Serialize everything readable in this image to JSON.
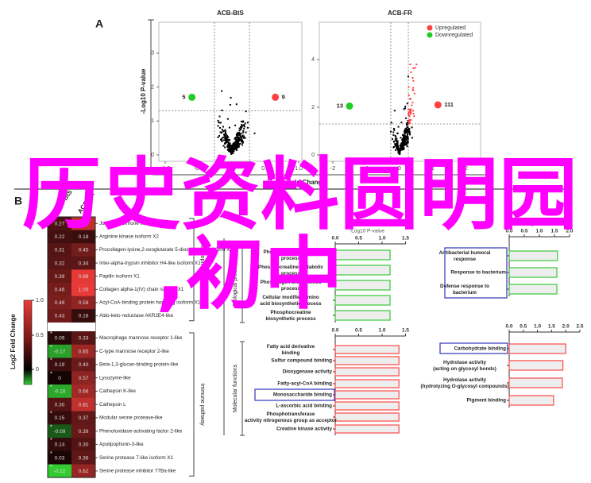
{
  "panel_labels": {
    "a": "A",
    "b": "B"
  },
  "overlay_text": {
    "line1": "历史资料圆明园",
    "line2": ",初中",
    "color": "#ff00ff"
  },
  "colors": {
    "up": "#ff4040",
    "down": "#22cc22",
    "ns": "#000000",
    "highlight_box": "#3333bb",
    "bp_bar_edge": "#44cc44",
    "mf_bar_edge": "#ff5555",
    "bar_fill": "#eeeeee"
  },
  "chart_data": [
    {
      "type": "scatter",
      "title": "ACB-BtS",
      "xlabel": "Log2 Fold Change",
      "ylabel": "-Log10 P-value",
      "xlim": [
        -1.1,
        1.05
      ],
      "ylim": [
        -0.1,
        3.5
      ],
      "xticks": [
        "-1.0",
        "-0.5",
        "0.0",
        "0.5",
        "1.0"
      ],
      "yticks": [
        "0",
        "1",
        "2",
        "3"
      ],
      "thresholds": {
        "x": [
          -0.263,
          0.263
        ],
        "y": 1.3
      },
      "summary": [
        {
          "label": "5",
          "x": -0.6,
          "y": 1.7,
          "group": "down"
        },
        {
          "label": "9",
          "x": 0.65,
          "y": 1.7,
          "group": "up"
        }
      ]
    },
    {
      "type": "scatter",
      "title": "ACB-FR",
      "xlabel": "Log2 Fold Change",
      "ylabel": "-Log10 P-value",
      "xlim": [
        -2.4,
        2.4
      ],
      "ylim": [
        -0.1,
        5.6
      ],
      "xticks": [
        "-2",
        "-1",
        "0",
        "1",
        "2"
      ],
      "yticks": [
        "0",
        "2",
        "4"
      ],
      "thresholds": {
        "x": [
          -0.263,
          0.263
        ],
        "y": 1.3
      },
      "legend": {
        "position": "top-right",
        "entries": [
          "Upregulated",
          "Downregulated"
        ]
      },
      "summary": [
        {
          "label": "13",
          "x": -1.5,
          "y": 2.05,
          "group": "down"
        },
        {
          "label": "111",
          "x": 1.15,
          "y": 2.1,
          "group": "up"
        }
      ]
    },
    {
      "type": "heatmap",
      "columns": [
        "ACB-BtS",
        "ACB-FR"
      ],
      "colorbar": {
        "label": "Log2 Fold Change",
        "ticks": [
          "1.0",
          "0.5",
          "0"
        ]
      },
      "groups": [
        {
          "name": "Development functions",
          "rows": [
            {
              "gene": "Juvenile hormone esterase-like X1",
              "values": [
                "0.27",
                "0.81"
              ]
            },
            {
              "gene": "Arginine kinase isoform X2",
              "values": [
                "0.22",
                "0.18"
              ]
            },
            {
              "gene": "Procollagen-lysine,2-oxoglutarate 5-dioxygenase isoform X1",
              "values": [
                "0.31",
                "0.45"
              ]
            },
            {
              "gene": "Inter-alpha-trypsin inhibitor H4-like isoform X1",
              "values": [
                "0.32",
                "0.34"
              ]
            },
            {
              "gene": "Papilin isoform X1",
              "values": [
                "0.39",
                "0.98"
              ]
            },
            {
              "gene": "Collagen alpha-1(IV) chain isoform X1",
              "values": [
                "0.46",
                "1.00"
              ]
            },
            {
              "gene": "Acyl-CoA-binding protein homolog isoform X1",
              "values": [
                "0.49",
                "0.59"
              ]
            },
            {
              "gene": "Aldo-keto reductase AKR2E4-like",
              "values": [
                "0.43",
                "0.16"
              ]
            }
          ]
        },
        {
          "name": "Immune pathway",
          "rows": [
            {
              "gene": "Macrophage mannose receptor 1-like",
              "values": [
                "0.09",
                "0.33"
              ],
              "significant": true
            },
            {
              "gene": "C-type mannose receptor 2-like",
              "values": [
                "-0.17",
                "0.65"
              ],
              "significant": true
            },
            {
              "gene": "Beta-1,3-glucan-binding protein-like",
              "values": [
                "0.19",
                "0.40"
              ],
              "significant": true
            },
            {
              "gene": "Lysozyme-like",
              "values": [
                "0",
                "0.57"
              ],
              "significant": true
            },
            {
              "gene": "Cathepsin K-like",
              "values": [
                "-0.18",
                "0.66"
              ],
              "significant": true
            },
            {
              "gene": "Cathepsin L",
              "values": [
                "0.30",
                "0.81"
              ],
              "significant": false
            },
            {
              "gene": "Modular serine protease-like",
              "values": [
                "0.15",
                "0.37"
              ],
              "significant": true
            },
            {
              "gene": "Phenoloxidase-activating factor 2-like",
              "values": [
                "-0.09",
                "0.39"
              ],
              "significant": true
            },
            {
              "gene": "Apolipophorin-3-like",
              "values": [
                "0.14",
                "0.30"
              ],
              "significant": true
            },
            {
              "gene": "Serine protease 7-like isoform X1",
              "values": [
                "0.03",
                "0.36"
              ],
              "significant": true
            },
            {
              "gene": "Serine protease inhibitor 77Ba-like",
              "values": [
                "-0.22",
                "0.62"
              ],
              "significant": true
            }
          ]
        }
      ]
    },
    {
      "type": "bar",
      "orientation": "horizontal",
      "group": "Biological process",
      "edge": "bp",
      "xlabel": "-Log10 P-value",
      "xlim": [
        0,
        1.5
      ],
      "xticks": [
        "0.0",
        "0.5",
        "1.0",
        "1.5"
      ],
      "categories": [
        "Phosphagen metabolic process",
        "Phosphocreatine metabolic process",
        "Phosphagen biosynthetic process",
        "Cellular modified amino acid biosynthetic process",
        "Phosphocreatine biosynthetic process"
      ],
      "values": [
        1.17,
        1.17,
        1.17,
        1.17,
        1.17
      ]
    },
    {
      "type": "bar",
      "orientation": "horizontal",
      "group": "Molecular functions",
      "edge": "mf",
      "xlim": [
        0,
        1.5
      ],
      "xticks": [
        "0.0",
        "0.5",
        "1.0",
        "1.5"
      ],
      "categories": [
        "Fatty acid derivative binding",
        "Sulfur compound binding",
        "Dioxygenase activity",
        "Fatty-acyl-CoA binding",
        "Monosaccharide binding",
        "L-ascorbic acid binding",
        "Phosphotransferase activity nitrogenous group as acceptor",
        "Creatine kinase activity"
      ],
      "values": [
        1.36,
        1.36,
        1.36,
        1.36,
        1.36,
        1.36,
        1.36,
        1.36
      ],
      "highlighted": [
        "Monosaccharide binding"
      ]
    },
    {
      "type": "bar",
      "orientation": "horizontal",
      "edge": "bp",
      "xlabel": "-Log10 P-value",
      "xlim": [
        0,
        2.0
      ],
      "xticks": [
        "0.0",
        "0.5",
        "1.0",
        "1.5",
        "2.0"
      ],
      "categories": [
        "Antibacterial humoral response",
        "Response to bacterium",
        "Defense response to bacterium"
      ],
      "values": [
        1.6,
        1.58,
        1.58
      ],
      "highlighted": [
        "Antibacterial humoral response",
        "Response to bacterium",
        "Defense response to bacterium"
      ]
    },
    {
      "type": "bar",
      "orientation": "horizontal",
      "edge": "mf",
      "xlim": [
        0,
        2.5
      ],
      "xticks": [
        "0.0",
        "0.5",
        "1.0",
        "1.5",
        "2.0",
        "2.5"
      ],
      "categories": [
        "Carbohydrate binding",
        "Hydrolase activity (acting on glycosyl bonds)",
        "Hydrolase activity (hydrolyzing O-glycosyl compounds)",
        "Pigment binding"
      ],
      "values": [
        2.0,
        1.9,
        1.88,
        1.57
      ],
      "highlighted": [
        "Carbohydrate binding"
      ]
    }
  ]
}
